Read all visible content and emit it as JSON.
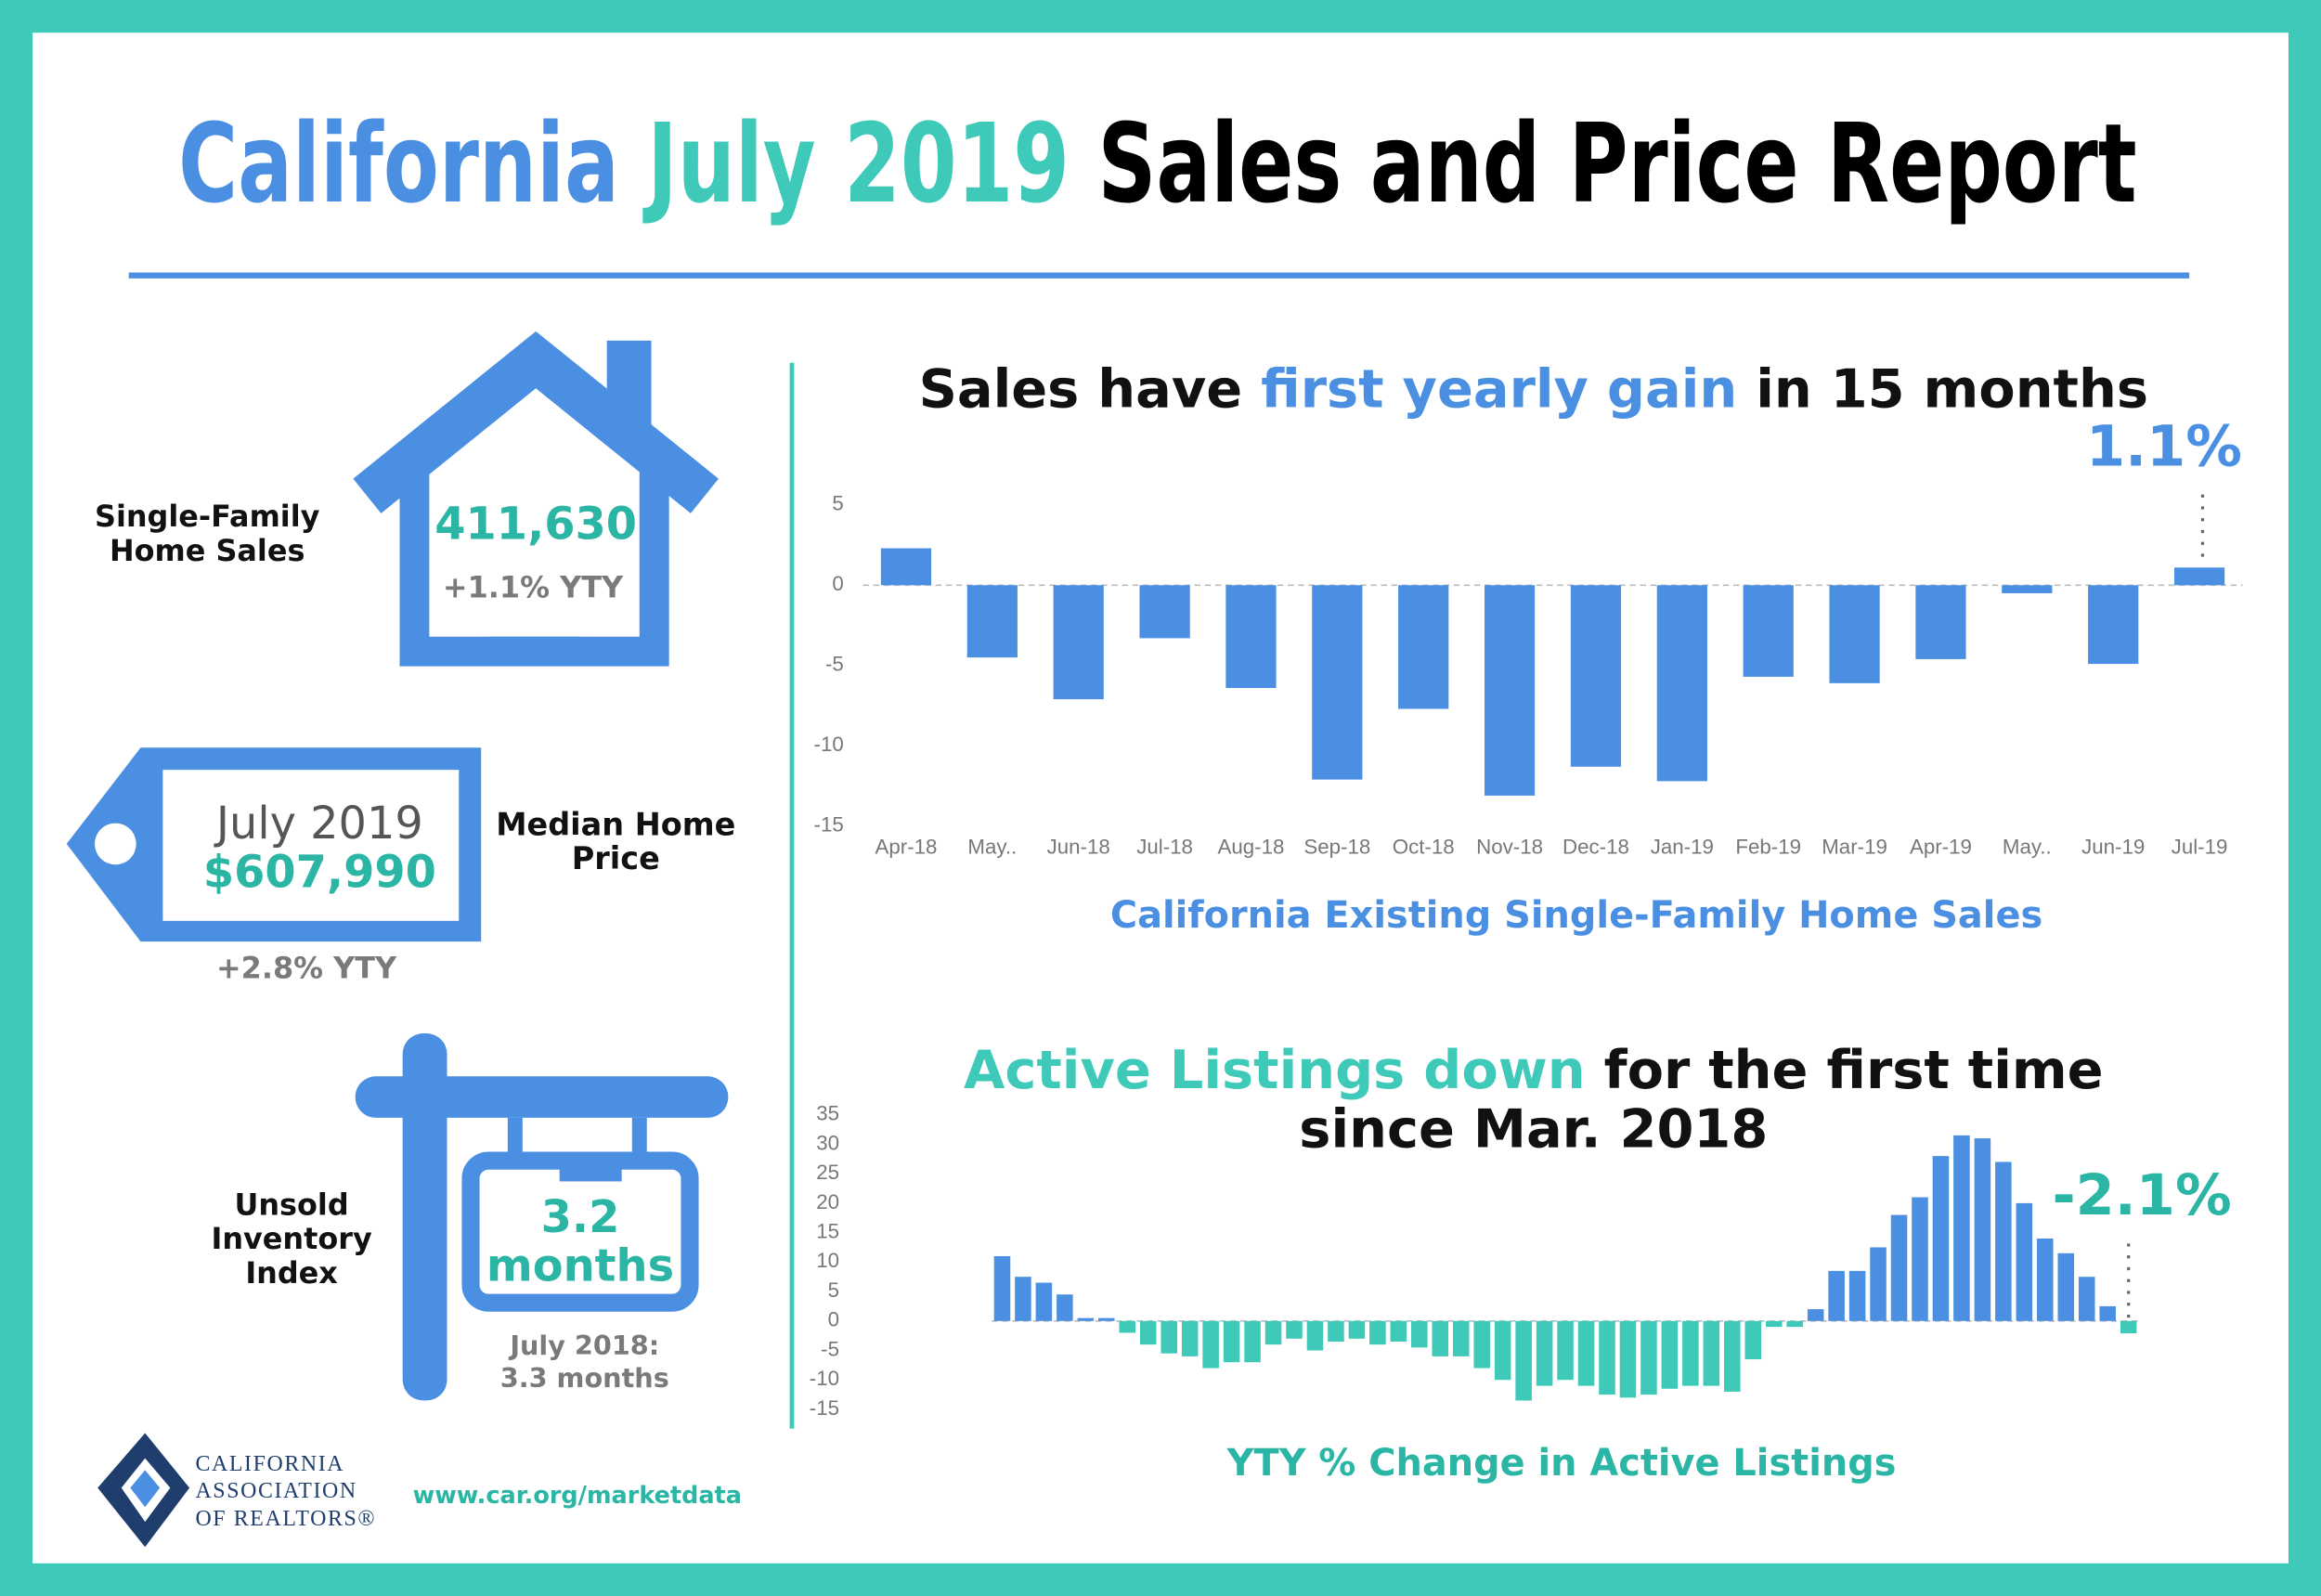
{
  "header": {
    "title": [
      "California",
      "July 2019",
      "Sales and Price Report"
    ]
  },
  "stats": {
    "home_sales": {
      "label": [
        "Single-Family",
        "Home Sales"
      ],
      "value": "411,630",
      "change": "+1.1% YTY"
    },
    "median_price": {
      "tag": [
        "July 2019",
        "$607,990"
      ],
      "label": [
        "Median Home",
        "Price"
      ],
      "change": "+2.8% YTY"
    },
    "inventory": {
      "label": [
        "Unsold",
        "Inventory",
        "Index"
      ],
      "value": [
        "3.2",
        "months"
      ],
      "previous": [
        "July 2018:",
        "3.3 months"
      ]
    }
  },
  "chart_data": [
    {
      "type": "bar",
      "title": [
        "Sales have",
        "first yearly gain",
        "in 15 months"
      ],
      "annotation": "1.1%",
      "caption": "California Existing Single-Family Home Sales",
      "categories": [
        "Apr-18",
        "May..",
        "Jun-18",
        "Jul-18",
        "Aug-18",
        "Sep-18",
        "Oct-18",
        "Nov-18",
        "Dec-18",
        "Jan-19",
        "Feb-19",
        "Mar-19",
        "Apr-19",
        "May..",
        "Jun-19",
        "Jul-19"
      ],
      "values": [
        2.3,
        -4.5,
        -7.1,
        -3.3,
        -6.4,
        -12.1,
        -7.7,
        -13.1,
        -11.3,
        -12.2,
        -5.7,
        -6.1,
        -4.6,
        -0.5,
        -4.9,
        1.1
      ],
      "color": "#4a8fe2",
      "ylim": [
        -15,
        5
      ],
      "yticks": [
        -15,
        -10,
        -5,
        0,
        5
      ]
    },
    {
      "type": "bar",
      "title": [
        "Active Listings down",
        "for the first time",
        "since Mar. 2018"
      ],
      "annotation": "-2.1%",
      "caption": "YTY % Change in Active Listings",
      "categories": [
        null,
        null,
        null,
        null,
        null,
        null,
        null,
        null,
        null,
        null,
        null,
        null,
        null,
        null,
        null,
        null,
        null,
        null,
        null,
        null,
        null,
        null,
        null,
        null,
        null,
        null,
        null,
        null,
        null,
        null,
        null,
        null,
        null,
        null,
        null,
        null,
        null,
        null,
        null,
        null,
        null,
        null,
        null,
        null,
        null,
        null,
        null,
        null,
        null,
        null,
        null,
        null,
        null,
        null,
        null
      ],
      "values": [
        11,
        7.5,
        6.5,
        4.5,
        0.5,
        0.5,
        -2,
        -4,
        -5.5,
        -6,
        -8,
        -7,
        -7,
        -4,
        -3,
        -5,
        -3.5,
        -3,
        -4,
        -3.5,
        -4.5,
        -6,
        -6,
        -8,
        -10,
        -13.5,
        -11,
        -10,
        -11,
        -12.5,
        -13,
        -12.5,
        -11.5,
        -11,
        -11,
        -12,
        -6.5,
        -1,
        -1,
        2,
        8.5,
        8.5,
        12.5,
        18,
        21,
        28,
        31.5,
        31,
        27,
        20,
        14,
        11.5,
        7.5,
        2.5,
        -2.1
      ],
      "color": "#4a8fe2",
      "negative_color": "#3ec9b9",
      "ylim": [
        -15,
        35
      ],
      "yticks": [
        -15,
        -10,
        -5,
        0,
        5,
        10,
        15,
        20,
        25,
        30,
        35
      ]
    }
  ],
  "footer": {
    "organization": [
      "CALIFORNIA",
      "ASSOCIATION",
      "OF REALTORS®"
    ],
    "url": "www.car.org/marketdata"
  }
}
